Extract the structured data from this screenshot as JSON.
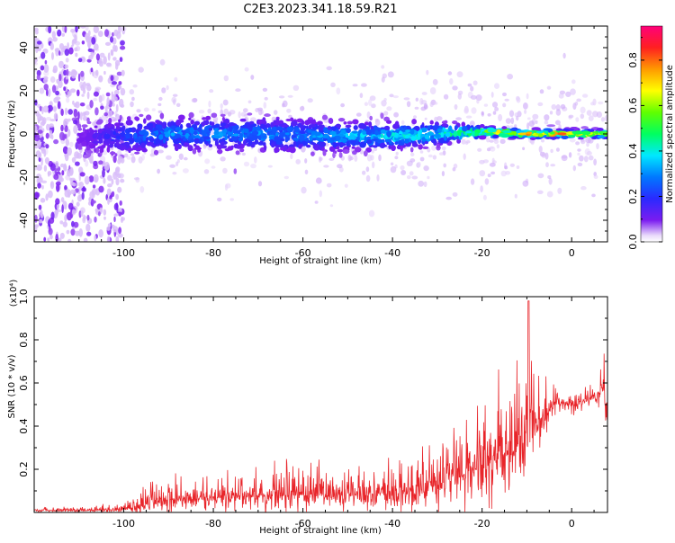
{
  "figure": {
    "title": "C2E3.2023.341.18.59.R21"
  },
  "chart_data": [
    {
      "type": "heatmap",
      "xlabel": "Height of straight line (km)",
      "ylabel": "Frequency (Hz)",
      "xlim": [
        -120,
        8
      ],
      "ylim": [
        -50,
        50
      ],
      "x_ticks": [
        "-100",
        "-80",
        "-60",
        "-40",
        "-20",
        "0"
      ],
      "y_ticks": [
        "-40",
        "-20",
        "0",
        "20",
        "40"
      ],
      "grid": false,
      "colorbar": {
        "label": "Normalized spectral amplitude",
        "range": [
          0.0,
          0.95
        ],
        "ticks": [
          "0.0",
          "0.2",
          "0.4",
          "0.6",
          "0.8"
        ]
      },
      "band": {
        "x": [
          -110,
          -100,
          -90,
          -80,
          -70,
          -60,
          -50,
          -40,
          -30,
          -20,
          -10,
          0,
          8
        ],
        "center_freq": [
          -2,
          -1,
          0,
          0,
          0,
          -1,
          -1,
          -1,
          0,
          1,
          0,
          0,
          0
        ],
        "half_width": [
          6,
          7,
          6,
          6,
          6,
          6,
          5,
          5,
          4,
          2,
          1.5,
          1.5,
          1.5
        ],
        "peak_amplitude": [
          0.1,
          0.25,
          0.35,
          0.35,
          0.35,
          0.35,
          0.4,
          0.45,
          0.5,
          0.65,
          0.85,
          0.9,
          0.9
        ]
      },
      "broadband_noise_region": [
        -120,
        -100
      ]
    },
    {
      "type": "line",
      "xlabel": "Height of straight line (km)",
      "ylabel": "SNR (10 * v/v)",
      "y_multiplier": "(x10⁴)",
      "xlim": [
        -120,
        8
      ],
      "ylim": [
        0,
        1.0
      ],
      "x_ticks": [
        "-100",
        "-80",
        "-60",
        "-40",
        "-20",
        "0"
      ],
      "y_ticks": [
        "0.2",
        "0.4",
        "0.6",
        "0.8",
        "1.0"
      ],
      "grid": false,
      "series": [
        {
          "color": "#e8252a",
          "x": [
            -120,
            -106,
            -100,
            -96,
            -94,
            -90,
            -80,
            -70,
            -65,
            -60,
            -50,
            -40,
            -36,
            -30,
            -25,
            -20,
            -16,
            -12,
            -10,
            -9.5,
            -9,
            -8,
            -6,
            -4,
            -2,
            0,
            2,
            4,
            6,
            7,
            8
          ],
          "base": [
            0.01,
            0.01,
            0.015,
            0.03,
            0.05,
            0.06,
            0.07,
            0.08,
            0.08,
            0.08,
            0.08,
            0.09,
            0.1,
            0.13,
            0.17,
            0.22,
            0.26,
            0.3,
            0.35,
            0.5,
            0.45,
            0.4,
            0.45,
            0.5,
            0.5,
            0.5,
            0.5,
            0.53,
            0.55,
            0.58,
            0.4
          ],
          "noise_amplitude": [
            0.01,
            0.015,
            0.02,
            0.05,
            0.06,
            0.07,
            0.07,
            0.1,
            0.12,
            0.1,
            0.09,
            0.1,
            0.15,
            0.15,
            0.18,
            0.2,
            0.22,
            0.25,
            0.2,
            0.5,
            0.2,
            0.15,
            0.12,
            0.08,
            0.06,
            0.05,
            0.05,
            0.05,
            0.06,
            0.15,
            0.1
          ]
        }
      ]
    }
  ]
}
